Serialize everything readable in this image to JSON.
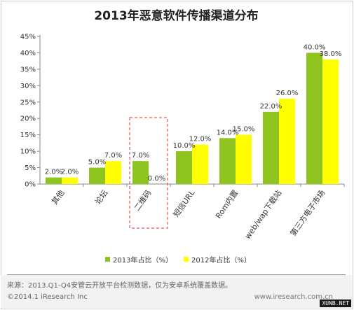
{
  "chart_data": {
    "type": "bar",
    "title": "2013年恶意软件传播渠道分布",
    "categories": [
      "其他",
      "论坛",
      "二维码",
      "短信URL",
      "Rom内置",
      "web/wap下载站",
      "第三方电子市场"
    ],
    "series": [
      {
        "name": "2013年占比（%）",
        "values": [
          2.0,
          5.0,
          7.0,
          10.0,
          14.0,
          22.0,
          40.0
        ],
        "color": "#8fc31f"
      },
      {
        "name": "2012年占比（%）",
        "values": [
          2.0,
          7.0,
          0.0,
          12.0,
          15.0,
          26.0,
          38.0
        ],
        "color": "#ffff00"
      }
    ],
    "data_labels": [
      [
        "2.0%",
        "5.0%",
        "7.0%",
        "10.0%",
        "14.0%",
        "22.0%",
        "40.0%"
      ],
      [
        "2.0%",
        "7.0%",
        "0.0%",
        "12.0%",
        "15.0%",
        "26.0%",
        "38.0%"
      ]
    ],
    "yticks": [
      "0%",
      "5%",
      "10%",
      "15%",
      "20%",
      "25%",
      "30%",
      "35%",
      "40%",
      "45%"
    ],
    "ylim": [
      0,
      45
    ],
    "xlabel": "",
    "ylabel": "",
    "legend_position": "bottom",
    "highlighted_category": "二维码",
    "grid": false
  },
  "footer": {
    "source": "来源：2013.Q1-Q4安管云开放平台检测数据，仅为安卓系统覆盖数据。",
    "copyright": "©2014.1 iResearch Inc",
    "url": "www.iresearch.com.cn",
    "watermark": "XUNB.NET"
  }
}
